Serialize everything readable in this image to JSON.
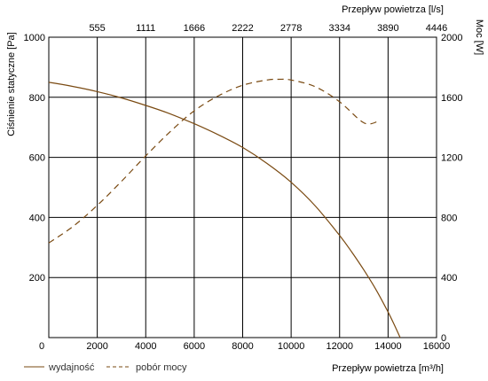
{
  "chart_data": {
    "type": "line",
    "xlabel": "Przepływ powietrza [m³/h]",
    "x2label": "Przepływ powietrza [l/s]",
    "ylabel": "Ciśnienie statyczne [Pa]",
    "y2label": "Moc [W]",
    "xlim": [
      0,
      16000
    ],
    "ylim": [
      0,
      1000
    ],
    "y2lim": [
      0,
      2000
    ],
    "x_ticks": [
      "0",
      "2000",
      "4000",
      "6000",
      "8000",
      "10000",
      "12000",
      "14000",
      "16000"
    ],
    "x2_ticks": [
      "555",
      "1111",
      "1666",
      "2222",
      "2778",
      "3334",
      "3890",
      "4446"
    ],
    "y_ticks": [
      "0",
      "200",
      "400",
      "600",
      "800",
      "1000"
    ],
    "y2_ticks": [
      "0",
      "400",
      "800",
      "1200",
      "1600",
      "2000"
    ],
    "grid": true,
    "legend": "bottom-left",
    "series": [
      {
        "name": "wydajność",
        "axis": "left",
        "style": "solid",
        "color": "#7a4a12",
        "x": [
          0,
          1000,
          2000,
          3000,
          4000,
          5000,
          6000,
          7000,
          8000,
          9000,
          10000,
          11000,
          12000,
          12500,
          13000,
          13500,
          14000,
          14300,
          14500
        ],
        "y": [
          850,
          836,
          819,
          798,
          773,
          745,
          712,
          675,
          633,
          580,
          517,
          438,
          340,
          285,
          225,
          160,
          85,
          35,
          0
        ]
      },
      {
        "name": "pobór mocy",
        "axis": "right",
        "style": "dashed",
        "color": "#7a4a12",
        "x": [
          0,
          1000,
          2000,
          3000,
          4000,
          5000,
          6000,
          7000,
          8000,
          9000,
          9500,
          10000,
          11000,
          12000,
          13000,
          13600
        ],
        "y": [
          630,
          740,
          880,
          1040,
          1210,
          1370,
          1510,
          1610,
          1680,
          1715,
          1720,
          1715,
          1670,
          1570,
          1430,
          1440
        ]
      }
    ]
  }
}
